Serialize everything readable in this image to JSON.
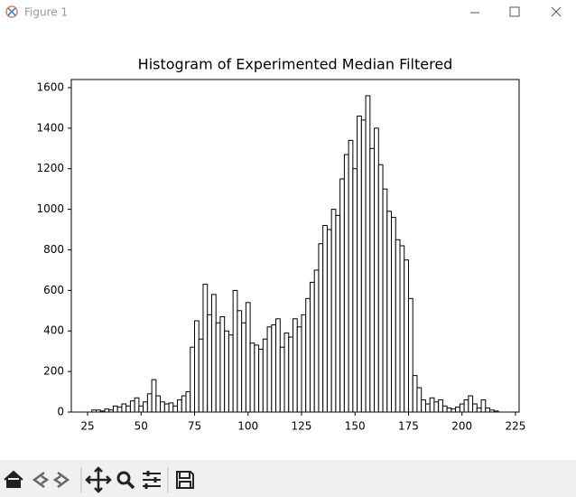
{
  "window": {
    "title": "Figure 1"
  },
  "chart_data": {
    "type": "histogram",
    "title": "Histogram of Experimented Median Filtered",
    "bins": [
      27,
      29,
      31,
      33,
      35,
      37,
      39,
      41,
      43,
      45,
      47,
      49,
      51,
      53,
      55,
      57,
      59,
      61,
      63,
      65,
      67,
      69,
      71,
      73,
      75,
      77,
      79,
      81,
      83,
      85,
      87,
      89,
      91,
      93,
      95,
      97,
      99,
      101,
      103,
      105,
      107,
      109,
      111,
      113,
      115,
      117,
      119,
      121,
      123,
      125,
      127,
      129,
      131,
      133,
      135,
      137,
      139,
      141,
      143,
      145,
      147,
      149,
      151,
      153,
      155,
      157,
      159,
      161,
      163,
      165,
      167,
      169,
      171,
      173,
      175,
      177,
      179,
      181,
      183,
      185,
      187,
      189,
      191,
      193,
      195,
      197,
      199,
      201,
      203,
      205,
      207,
      209,
      211,
      213,
      215,
      217
    ],
    "counts": [
      10,
      10,
      5,
      15,
      10,
      30,
      25,
      40,
      30,
      55,
      70,
      30,
      50,
      90,
      160,
      80,
      50,
      40,
      45,
      30,
      60,
      80,
      100,
      320,
      450,
      360,
      630,
      480,
      580,
      440,
      470,
      400,
      380,
      600,
      500,
      440,
      540,
      340,
      330,
      310,
      360,
      420,
      430,
      460,
      320,
      390,
      370,
      460,
      420,
      480,
      560,
      640,
      700,
      830,
      920,
      900,
      1000,
      970,
      1150,
      1270,
      1340,
      1200,
      1460,
      1440,
      1560,
      1300,
      1400,
      1220,
      1100,
      990,
      960,
      850,
      820,
      750,
      560,
      180,
      120,
      60,
      40,
      70,
      50,
      60,
      30,
      20,
      15,
      25,
      40,
      60,
      80,
      40,
      20,
      60,
      20,
      10,
      5
    ],
    "color": "#ffffff",
    "edgecolor": "#000000",
    "xlim": [
      17.4,
      226.7
    ],
    "ylim": [
      0,
      1640
    ],
    "xticks": [
      25,
      50,
      75,
      100,
      125,
      150,
      175,
      200,
      225
    ],
    "yticks": [
      0,
      200,
      400,
      600,
      800,
      1000,
      1200,
      1400,
      1600
    ]
  }
}
